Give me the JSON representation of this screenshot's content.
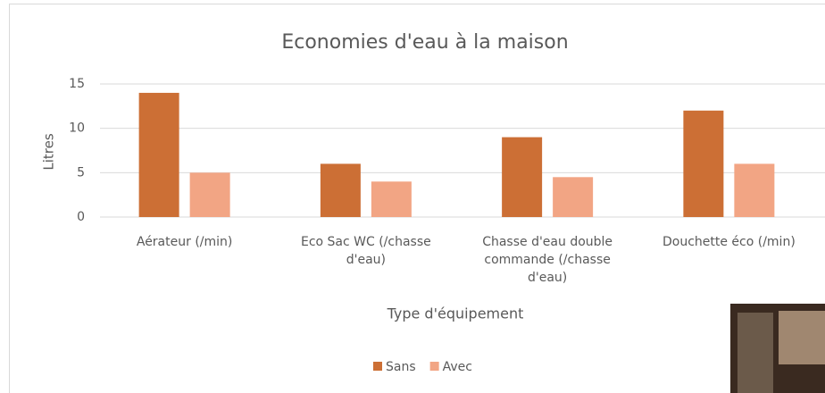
{
  "chart_data": {
    "type": "bar",
    "title": "Economies d'eau à la maison",
    "x_label": "Type d'équipement",
    "y_label": "Litres",
    "categories": [
      "Aérateur (/min)",
      "Eco Sac WC (/chasse d'eau)",
      "Chasse d'eau double commande (/chasse d'eau)",
      "Douchette éco (/min)"
    ],
    "series": [
      {
        "name": "Sans",
        "color": "#cc6f35",
        "values": [
          14,
          6,
          9,
          12
        ]
      },
      {
        "name": "Avec",
        "color": "#f2a584",
        "values": [
          5,
          4,
          4.5,
          6
        ]
      }
    ],
    "ylim": [
      0,
      15
    ],
    "yticks": [
      0,
      5,
      10,
      15
    ],
    "grid": true,
    "legend": "bottom"
  }
}
